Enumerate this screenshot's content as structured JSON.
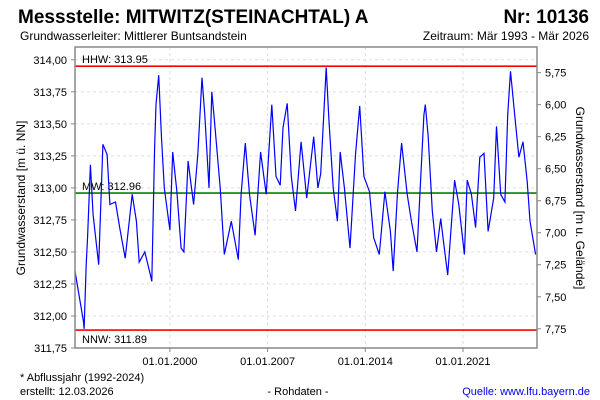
{
  "header": {
    "title": "Messstelle: MITWITZ(STEINACHTAL) A",
    "number": "Nr: 10136",
    "aquifer": "Grundwasserleiter:   Mittlerer Buntsandstein",
    "period": "Zeitraum: Mär 1993 - Mär 2026"
  },
  "footer": {
    "note": "* Abflussjahr (1992-2024)",
    "created": "erstellt:  12.03.2026",
    "datatype": "- Rohdaten -",
    "source": "Quelle: www.lfu.bayern.de"
  },
  "colors": {
    "series": "#0000ff",
    "extreme": "#ff0000",
    "mean": "#008000"
  },
  "chart_data": {
    "type": "line",
    "ylabel": "Grundwasserstand [m ü. NN]",
    "ylabel_right": "Grundwasserstand [m u. Gelände]",
    "ylim": [
      311.75,
      314.1
    ],
    "xlim": [
      1993.2,
      2026.3
    ],
    "ground_level": 319.65,
    "yticks": [
      "314,00",
      "313,75",
      "313,50",
      "313,25",
      "313,00",
      "312,75",
      "312,50",
      "312,25",
      "312,00",
      "311,75"
    ],
    "ytick_values": [
      314.0,
      313.75,
      313.5,
      313.25,
      313.0,
      312.75,
      312.5,
      312.25,
      312.0,
      311.75
    ],
    "yticks_right": [
      "5,75",
      "6,00",
      "6,25",
      "6,50",
      "6,75",
      "7,00",
      "7,25",
      "7,50",
      "7,75"
    ],
    "ytick_right_values": [
      5.75,
      6.0,
      6.25,
      6.5,
      6.75,
      7.0,
      7.25,
      7.5,
      7.75
    ],
    "xticks": [
      "01.01.2000",
      "01.01.2007",
      "01.01.2014",
      "01.01.2021"
    ],
    "xtick_values": [
      2000,
      2007,
      2014,
      2021
    ],
    "grid": true,
    "reference_lines": [
      {
        "label": "HHW: 313.95",
        "value": 313.95,
        "kind": "extreme"
      },
      {
        "label": "MW: 312.96",
        "value": 312.96,
        "kind": "mean"
      },
      {
        "label": "NNW: 311.89",
        "value": 311.89,
        "kind": "extreme"
      }
    ],
    "series": [
      {
        "name": "Grundwasserstand",
        "x": [
          1993.2,
          1993.8,
          1993.85,
          1994.0,
          1994.1,
          1994.3,
          1994.5,
          1994.9,
          1995.2,
          1995.5,
          1995.7,
          1996.1,
          1996.4,
          1996.8,
          1997.3,
          1997.6,
          1997.8,
          1998.2,
          1998.6,
          1998.7,
          1998.9,
          1999.0,
          1999.2,
          1999.4,
          1999.6,
          2000.0,
          2000.2,
          2000.5,
          2000.8,
          2001.0,
          2001.3,
          2001.7,
          2002.0,
          2002.3,
          2002.5,
          2002.8,
          2003.0,
          2003.2,
          2003.6,
          2003.9,
          2004.4,
          2004.9,
          2005.1,
          2005.4,
          2005.7,
          2006.1,
          2006.5,
          2006.9,
          2007.3,
          2007.6,
          2007.9,
          2008.1,
          2008.4,
          2008.7,
          2009.0,
          2009.4,
          2009.8,
          2010.3,
          2010.6,
          2010.8,
          2011.2,
          2011.4,
          2011.7,
          2012.0,
          2012.2,
          2012.5,
          2012.9,
          2013.3,
          2013.6,
          2013.9,
          2014.3,
          2014.6,
          2015.0,
          2015.4,
          2015.8,
          2016.0,
          2016.3,
          2016.4,
          2016.6,
          2017.0,
          2017.3,
          2017.7,
          2018.2,
          2018.3,
          2018.5,
          2018.8,
          2019.1,
          2019.4,
          2019.6,
          2019.9,
          2020.4,
          2020.7,
          2021.1,
          2021.3,
          2021.6,
          2021.9,
          2022.2,
          2022.5,
          2022.8,
          2023.2,
          2023.4,
          2023.7,
          2024.0,
          2024.2,
          2024.4,
          2024.7,
          2025.0,
          2025.3,
          2025.6,
          2025.8,
          2026.2
        ],
        "y": [
          312.35,
          311.96,
          311.9,
          312.4,
          312.62,
          313.18,
          312.79,
          312.4,
          313.34,
          313.26,
          312.87,
          312.89,
          312.69,
          312.45,
          312.95,
          312.74,
          312.42,
          312.5,
          312.32,
          312.27,
          313.31,
          313.65,
          313.88,
          313.39,
          313.0,
          312.67,
          313.28,
          312.97,
          312.53,
          312.5,
          313.21,
          312.87,
          313.26,
          313.86,
          313.57,
          313.0,
          313.75,
          313.51,
          313.0,
          312.48,
          312.74,
          312.44,
          312.95,
          313.35,
          312.95,
          312.63,
          313.28,
          312.95,
          313.65,
          313.09,
          313.02,
          313.47,
          313.66,
          313.09,
          312.82,
          313.36,
          312.92,
          313.4,
          313.0,
          313.11,
          313.94,
          313.52,
          313.0,
          312.74,
          313.28,
          313.0,
          312.53,
          313.26,
          313.64,
          313.09,
          312.97,
          312.61,
          312.48,
          312.97,
          312.66,
          312.35,
          312.95,
          313.09,
          313.35,
          312.95,
          312.74,
          312.5,
          313.57,
          313.65,
          313.41,
          312.82,
          312.5,
          312.76,
          312.58,
          312.32,
          313.06,
          312.87,
          312.48,
          313.06,
          312.95,
          312.69,
          313.24,
          313.27,
          312.66,
          312.92,
          313.48,
          312.95,
          312.89,
          313.57,
          313.91,
          313.57,
          313.24,
          313.36,
          313.05,
          312.74,
          312.48
        ]
      }
    ]
  }
}
